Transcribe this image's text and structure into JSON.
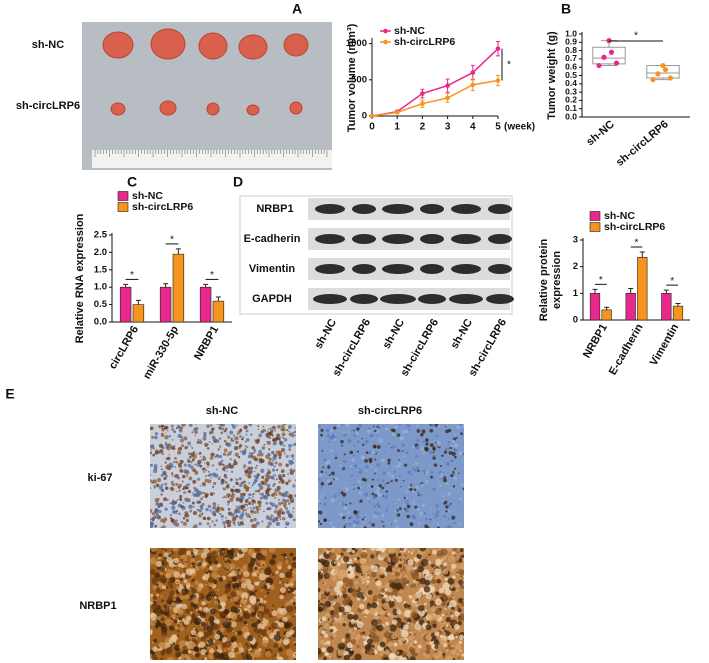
{
  "panel_labels": [
    "A",
    "B",
    "C",
    "D",
    "E"
  ],
  "photo": {
    "rows": [
      "sh-NC",
      "sh-circLRP6"
    ]
  },
  "western_blot": {
    "rows": [
      "NRBP1",
      "E-cadherin",
      "Vimentin",
      "GAPDH"
    ],
    "lanes": [
      "sh-NC",
      "sh-circLRP6",
      "sh-NC",
      "sh-circLRP6",
      "sh-NC",
      "sh-circLRP6"
    ]
  },
  "ihc": {
    "columns": [
      "sh-NC",
      "sh-circLRP6"
    ],
    "rows": [
      "ki-67",
      "NRBP1"
    ]
  },
  "chart_data": [
    {
      "type": "line",
      "y_label": "Tumor volume (mm³)",
      "x_label": "(week)",
      "x": [
        0,
        1,
        2,
        3,
        4,
        5
      ],
      "xlim": [
        0,
        5
      ],
      "xticks": [
        0,
        1,
        2,
        3,
        4,
        5
      ],
      "ylim": [
        0,
        1050
      ],
      "yticks": [
        0,
        500,
        1000
      ],
      "legend": "upper left",
      "series": [
        {
          "name": "sh-NC",
          "color": "#e8288a",
          "values": [
            0,
            60,
            310,
            420,
            600,
            930
          ],
          "errors": [
            0,
            10,
            60,
            90,
            100,
            100
          ]
        },
        {
          "name": "sh-circLRP6",
          "color": "#f7941d",
          "values": [
            0,
            50,
            170,
            250,
            430,
            490
          ],
          "errors": [
            0,
            10,
            50,
            60,
            80,
            70
          ]
        }
      ],
      "annotations": [
        "*"
      ]
    },
    {
      "type": "box",
      "y_label": "Tumor weight (g)",
      "categories": [
        "sh-NC",
        "sh-circLRP6"
      ],
      "colors": [
        "#e8288a",
        "#f7941d"
      ],
      "ylim": [
        0,
        1
      ],
      "yticks": [
        {
          "value": 0,
          "label": "0.0"
        },
        {
          "value": 0.1,
          "label": "0.1"
        },
        {
          "value": 0.2,
          "label": "0.2"
        },
        {
          "value": 0.3,
          "label": "0.3"
        },
        {
          "value": 0.4,
          "label": "0.4"
        },
        {
          "value": 0.5,
          "label": "0.5"
        },
        {
          "value": 0.6,
          "label": "0.6"
        },
        {
          "value": 0.7,
          "label": "0.7"
        },
        {
          "value": 0.8,
          "label": "0.8"
        },
        {
          "value": 0.9,
          "label": "0.9"
        },
        {
          "value": 1,
          "label": "1.0"
        }
      ],
      "boxes": [
        {
          "min": 0.62,
          "q1": 0.64,
          "median": 0.71,
          "q3": 0.84,
          "max": 0.92,
          "points": [
            0.92,
            0.78,
            0.72,
            0.65,
            0.62
          ]
        },
        {
          "min": 0.45,
          "q1": 0.47,
          "median": 0.53,
          "q3": 0.62,
          "max": 0.62,
          "points": [
            0.62,
            0.57,
            0.52,
            0.47,
            0.45
          ]
        }
      ],
      "annotations": [
        "*"
      ]
    },
    {
      "type": "bar",
      "y_label": [
        "Relative RNA expression"
      ],
      "categories": [
        "circLRP6",
        "miR-330-5p",
        "NRBP1"
      ],
      "ylim": [
        0,
        2.5
      ],
      "yticks": [
        {
          "value": 0,
          "label": "0.0"
        },
        {
          "value": 0.5,
          "label": "0.5"
        },
        {
          "value": 1,
          "label": "1.0"
        },
        {
          "value": 1.5,
          "label": "1.5"
        },
        {
          "value": 2,
          "label": "2.0"
        },
        {
          "value": 2.5,
          "label": "2.5"
        }
      ],
      "series": [
        {
          "name": "sh-NC",
          "color": "#e8288a",
          "values": [
            1.0,
            1.0,
            1.0
          ],
          "errors": [
            0.08,
            0.1,
            0.08
          ]
        },
        {
          "name": "sh-circLRP6",
          "color": "#f7941d",
          "values": [
            0.5,
            1.95,
            0.6
          ],
          "errors": [
            0.12,
            0.15,
            0.12
          ]
        }
      ],
      "annotations": [
        "*",
        "*",
        "*"
      ]
    },
    {
      "type": "bar",
      "y_label": [
        "Relative protein",
        "expression"
      ],
      "categories": [
        "NRBP1",
        "E-cadherin",
        "Vimentin"
      ],
      "ylim": [
        0,
        3
      ],
      "yticks": [
        0,
        1,
        2,
        3
      ],
      "series": [
        {
          "name": "sh-NC",
          "color": "#e8288a",
          "values": [
            1.0,
            1.0,
            1.0
          ],
          "errors": [
            0.15,
            0.18,
            0.12
          ]
        },
        {
          "name": "sh-circLRP6",
          "color": "#f7941d",
          "values": [
            0.38,
            2.35,
            0.52
          ],
          "errors": [
            0.1,
            0.2,
            0.1
          ]
        }
      ],
      "annotations": [
        "*",
        "*",
        "*"
      ]
    }
  ]
}
